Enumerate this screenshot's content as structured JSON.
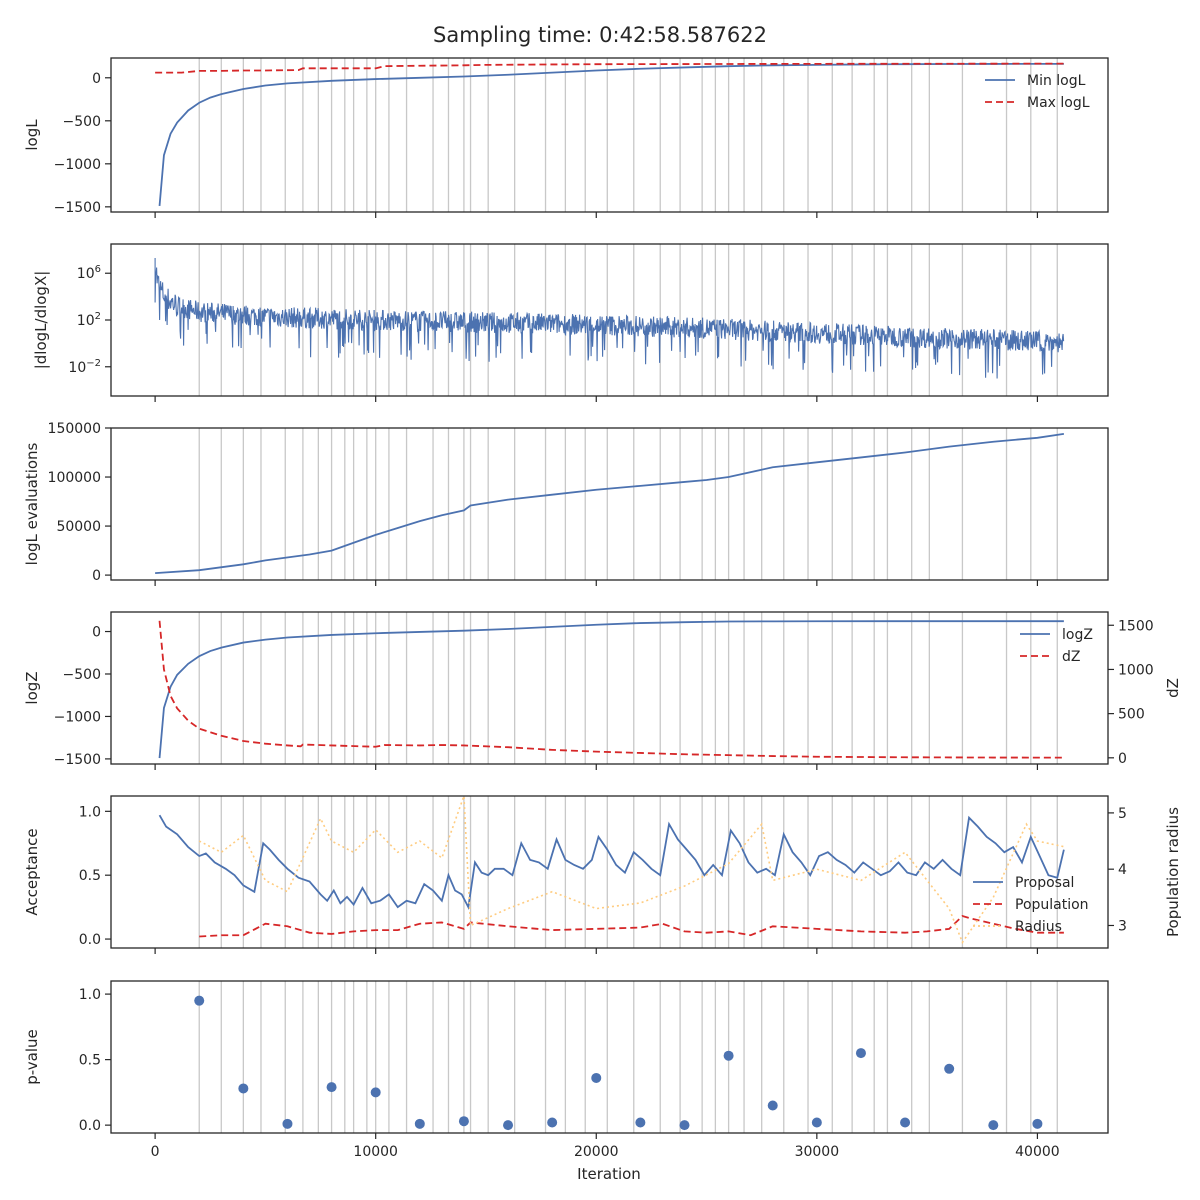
{
  "figure": {
    "title": "Sampling time: 0:42:58.587622",
    "xlabel": "Iteration"
  },
  "colors": {
    "blue": "#4c72b0",
    "red": "#d62728",
    "orange_dotted": "#ffcc80",
    "grid_line": "#c8c8c8",
    "frame": "#262626"
  },
  "chart_data": [
    {
      "id": "logL",
      "type": "line",
      "ylabel": "logL",
      "xlim": [
        -2000,
        43200
      ],
      "ylim": [
        -1560,
        230
      ],
      "x_ticks": [
        0,
        10000,
        20000,
        30000,
        40000
      ],
      "y_ticks": [
        0,
        -500,
        -1000,
        -1500
      ],
      "y_tick_labels": [
        "0",
        "−500",
        "−1000",
        "−1500"
      ],
      "legend": {
        "position": "top-right",
        "entries": [
          "Min logL",
          "Max logL"
        ]
      },
      "series": [
        {
          "name": "Min logL",
          "style": "solid",
          "color": "#4c72b0",
          "x": [
            200,
            400,
            700,
            1000,
            1500,
            2000,
            2500,
            3000,
            4000,
            5000,
            6000,
            8000,
            10000,
            12000,
            14000,
            16000,
            18000,
            20000,
            22000,
            24000,
            26000,
            28000,
            30000,
            32000,
            34000,
            36000,
            38000,
            40000,
            41200
          ],
          "y": [
            -1490,
            -900,
            -650,
            -520,
            -380,
            -290,
            -230,
            -190,
            -130,
            -90,
            -65,
            -35,
            -15,
            0,
            15,
            35,
            60,
            85,
            105,
            120,
            135,
            145,
            150,
            155,
            158,
            160,
            161,
            162,
            162
          ]
        },
        {
          "name": "Max logL",
          "style": "dashed",
          "color": "#d62728",
          "x": [
            0,
            1200,
            2000,
            3000,
            4000,
            5000,
            6500,
            6700,
            8000,
            10000,
            10400,
            12000,
            14000,
            15000,
            18000,
            20000,
            25000,
            30000,
            35000,
            41200
          ],
          "y": [
            60,
            60,
            80,
            80,
            85,
            85,
            90,
            110,
            110,
            110,
            135,
            140,
            145,
            150,
            155,
            158,
            160,
            162,
            163,
            165
          ]
        }
      ]
    },
    {
      "id": "dlogL",
      "type": "line",
      "ylabel": "|dlogL/dlogX|",
      "y_scale": "log",
      "xlim": [
        -2000,
        43200
      ],
      "ylim_log10": [
        -4.5,
        8.5
      ],
      "y_ticks_log10": [
        6,
        2,
        -2
      ],
      "y_tick_labels": [
        "10^6",
        "10^2",
        "10^−2"
      ],
      "series": [
        {
          "name": "",
          "style": "solid",
          "color": "#4c72b0",
          "x": [
            0,
            100,
            300,
            600,
            1000,
            2000,
            5000,
            10000,
            15000,
            20000,
            25000,
            30000,
            35000,
            40000,
            41200
          ],
          "y_log10_center": [
            7.3,
            5.2,
            4.3,
            3.6,
            3.1,
            2.6,
            2.2,
            1.9,
            1.7,
            1.5,
            1.2,
            0.8,
            0.4,
            0.1,
            0.0
          ]
        }
      ]
    },
    {
      "id": "evaluations",
      "type": "line",
      "ylabel": "logL evaluations",
      "xlim": [
        -2000,
        43200
      ],
      "ylim": [
        -5000,
        150000
      ],
      "y_ticks": [
        0,
        50000,
        100000,
        150000
      ],
      "y_tick_labels": [
        "0",
        "50000",
        "100000",
        "150000"
      ],
      "series": [
        {
          "name": "",
          "style": "solid",
          "color": "#4c72b0",
          "x": [
            0,
            2000,
            4000,
            5000,
            7000,
            8000,
            9000,
            10000,
            11000,
            12000,
            13000,
            14000,
            14300,
            16000,
            18000,
            20000,
            22000,
            24000,
            25000,
            26000,
            28000,
            30000,
            32000,
            34000,
            36000,
            38000,
            40000,
            41200
          ],
          "y": [
            2000,
            5000,
            11000,
            15000,
            21000,
            25000,
            33000,
            41000,
            48000,
            55000,
            61000,
            66000,
            71000,
            77000,
            82000,
            87000,
            91000,
            95000,
            97000,
            100000,
            110000,
            115000,
            120000,
            125000,
            131000,
            136000,
            140000,
            144000
          ]
        }
      ]
    },
    {
      "id": "logZ",
      "type": "line",
      "ylabel": "logZ",
      "ylabel_right": "dZ",
      "xlim": [
        -2000,
        43200
      ],
      "ylim": [
        -1560,
        230
      ],
      "ylim_right": [
        -70,
        1650
      ],
      "y_ticks": [
        0,
        -500,
        -1000,
        -1500
      ],
      "y_tick_labels": [
        "0",
        "−500",
        "−1000",
        "−1500"
      ],
      "y_ticks_right": [
        1500,
        1000,
        500,
        0
      ],
      "y_tick_labels_right": [
        "1500",
        "1000",
        "500",
        "0"
      ],
      "legend": {
        "position": "top-right",
        "entries": [
          "logZ",
          "dZ"
        ]
      },
      "series": [
        {
          "name": "logZ",
          "style": "solid",
          "color": "#4c72b0",
          "axis": "left",
          "x": [
            200,
            400,
            700,
            1000,
            1500,
            2000,
            2500,
            3000,
            4000,
            5000,
            6000,
            8000,
            10000,
            12000,
            14000,
            16000,
            18000,
            20000,
            22000,
            24000,
            26000,
            28000,
            30000,
            34000,
            38000,
            41200
          ],
          "y": [
            -1490,
            -900,
            -650,
            -510,
            -380,
            -290,
            -230,
            -190,
            -130,
            -95,
            -70,
            -40,
            -20,
            -5,
            10,
            30,
            55,
            80,
            100,
            110,
            118,
            120,
            121,
            122,
            122,
            122
          ]
        },
        {
          "name": "dZ",
          "style": "dashed",
          "color": "#d62728",
          "axis": "right",
          "x": [
            200,
            400,
            700,
            1000,
            1500,
            2000,
            3000,
            4000,
            5000,
            6000,
            6600,
            6700,
            8000,
            10000,
            10400,
            12000,
            13000,
            14000,
            16000,
            18000,
            20000,
            22000,
            24000,
            26000,
            28000,
            30000,
            34000,
            38000,
            41200
          ],
          "y": [
            1550,
            1000,
            700,
            560,
            420,
            330,
            250,
            190,
            160,
            140,
            130,
            150,
            140,
            125,
            145,
            140,
            145,
            140,
            120,
            90,
            70,
            55,
            40,
            30,
            20,
            12,
            6,
            3,
            2
          ]
        }
      ]
    },
    {
      "id": "acceptance",
      "type": "line",
      "ylabel": "Acceptance",
      "ylabel_right": "Population radius",
      "xlim": [
        -2000,
        43200
      ],
      "ylim": [
        -0.07,
        1.12
      ],
      "ylim_right": [
        2.6,
        5.3
      ],
      "y_ticks": [
        0.0,
        0.5,
        1.0
      ],
      "y_tick_labels": [
        "0.0",
        "0.5",
        "1.0"
      ],
      "y_ticks_right": [
        3,
        4,
        5
      ],
      "y_tick_labels_right": [
        "3",
        "4",
        "5"
      ],
      "legend": {
        "position": "lower-right",
        "entries": [
          "Proposal",
          "Population",
          "Radius"
        ]
      },
      "series": [
        {
          "name": "Proposal",
          "style": "solid",
          "color": "#4c72b0",
          "axis": "left",
          "x": [
            200,
            500,
            1000,
            1500,
            2000,
            2300,
            2700,
            3200,
            3600,
            4000,
            4500,
            4900,
            5200,
            5600,
            6000,
            6500,
            7000,
            7500,
            7800,
            8100,
            8400,
            8700,
            9000,
            9400,
            9800,
            10200,
            10600,
            11000,
            11400,
            11800,
            12200,
            12600,
            13000,
            13300,
            13600,
            13900,
            14200,
            14500,
            14800,
            15100,
            15400,
            15800,
            16200,
            16600,
            17000,
            17400,
            17800,
            18200,
            18600,
            19000,
            19400,
            19800,
            20100,
            20500,
            20900,
            21300,
            21700,
            22100,
            22500,
            22900,
            23300,
            23700,
            24100,
            24500,
            24900,
            25300,
            25700,
            26100,
            26500,
            26900,
            27300,
            27700,
            28100,
            28500,
            28900,
            29300,
            29700,
            30100,
            30500,
            30900,
            31300,
            31700,
            32100,
            32500,
            32900,
            33300,
            33700,
            34100,
            34500,
            34900,
            35300,
            35700,
            36100,
            36500,
            36900,
            37300,
            37700,
            38100,
            38500,
            38900,
            39300,
            39700,
            40100,
            40500,
            40900,
            41200
          ],
          "y": [
            0.97,
            0.88,
            0.82,
            0.72,
            0.65,
            0.67,
            0.6,
            0.55,
            0.5,
            0.42,
            0.37,
            0.75,
            0.7,
            0.62,
            0.55,
            0.48,
            0.45,
            0.35,
            0.3,
            0.38,
            0.28,
            0.33,
            0.27,
            0.4,
            0.28,
            0.3,
            0.35,
            0.25,
            0.3,
            0.28,
            0.43,
            0.38,
            0.3,
            0.5,
            0.38,
            0.35,
            0.25,
            0.6,
            0.52,
            0.5,
            0.55,
            0.55,
            0.5,
            0.75,
            0.62,
            0.6,
            0.55,
            0.78,
            0.62,
            0.58,
            0.55,
            0.62,
            0.8,
            0.7,
            0.58,
            0.52,
            0.68,
            0.62,
            0.55,
            0.5,
            0.9,
            0.78,
            0.7,
            0.62,
            0.5,
            0.58,
            0.5,
            0.85,
            0.75,
            0.6,
            0.52,
            0.55,
            0.5,
            0.82,
            0.68,
            0.6,
            0.5,
            0.65,
            0.68,
            0.62,
            0.58,
            0.52,
            0.6,
            0.55,
            0.5,
            0.53,
            0.6,
            0.52,
            0.5,
            0.6,
            0.55,
            0.62,
            0.55,
            0.5,
            0.95,
            0.88,
            0.8,
            0.75,
            0.68,
            0.72,
            0.6,
            0.8,
            0.65,
            0.5,
            0.48,
            0.7
          ]
        },
        {
          "name": "Population",
          "style": "dashed",
          "color": "#d62728",
          "axis": "left",
          "x": [
            2000,
            3000,
            4000,
            5000,
            6000,
            7000,
            8000,
            9000,
            10000,
            11000,
            12000,
            13000,
            14000,
            14300,
            16000,
            18000,
            20000,
            22000,
            23000,
            24000,
            25000,
            26000,
            27000,
            28000,
            30000,
            32000,
            34000,
            35000,
            36000,
            36600,
            37000,
            38000,
            39000,
            40000,
            41200
          ],
          "y": [
            0.02,
            0.03,
            0.03,
            0.12,
            0.1,
            0.05,
            0.04,
            0.06,
            0.07,
            0.07,
            0.12,
            0.13,
            0.08,
            0.13,
            0.1,
            0.07,
            0.08,
            0.09,
            0.12,
            0.06,
            0.05,
            0.06,
            0.03,
            0.1,
            0.08,
            0.06,
            0.05,
            0.06,
            0.08,
            0.18,
            0.16,
            0.12,
            0.08,
            0.05,
            0.05
          ]
        },
        {
          "name": "Radius",
          "style": "dotted",
          "color": "#ffcc80",
          "axis": "right",
          "x": [
            2000,
            3000,
            4000,
            5000,
            6000,
            7500,
            8000,
            9000,
            10000,
            11000,
            12000,
            13000,
            14000,
            14300,
            16000,
            18000,
            20000,
            22000,
            24000,
            26000,
            27500,
            28000,
            30000,
            32000,
            34000,
            36000,
            36600,
            38000,
            39500,
            40000,
            41200
          ],
          "y": [
            4.5,
            4.3,
            4.6,
            3.8,
            3.6,
            4.9,
            4.5,
            4.3,
            4.7,
            4.3,
            4.5,
            4.2,
            5.3,
            3.0,
            3.3,
            3.6,
            3.3,
            3.4,
            3.7,
            4.1,
            4.8,
            3.8,
            4.0,
            3.8,
            4.3,
            3.3,
            2.7,
            3.5,
            4.8,
            4.5,
            4.4
          ]
        }
      ]
    },
    {
      "id": "pvalue",
      "type": "scatter",
      "ylabel": "p-value",
      "xlim": [
        -2000,
        43200
      ],
      "ylim": [
        -0.06,
        1.1
      ],
      "y_ticks": [
        0.0,
        0.5,
        1.0
      ],
      "y_tick_labels": [
        "0.0",
        "0.5",
        "1.0"
      ],
      "x_ticks": [
        0,
        10000,
        20000,
        30000,
        40000
      ],
      "x_tick_labels": [
        "0",
        "10000",
        "20000",
        "30000",
        "40000"
      ],
      "series": [
        {
          "name": "",
          "color": "#4c72b0",
          "x": [
            2000,
            4000,
            6000,
            8000,
            10000,
            12000,
            14000,
            16000,
            18000,
            20000,
            22000,
            24000,
            26000,
            28000,
            30000,
            32000,
            34000,
            36000,
            38000,
            40000
          ],
          "y": [
            0.95,
            0.28,
            0.01,
            0.29,
            0.25,
            0.01,
            0.03,
            0.0,
            0.02,
            0.36,
            0.02,
            0.0,
            0.53,
            0.15,
            0.02,
            0.55,
            0.02,
            0.43,
            0.0,
            0.01
          ]
        }
      ]
    }
  ],
  "boundary_lines_x": [
    2000,
    3000,
    4000,
    4800,
    5900,
    6700,
    7400,
    8000,
    8600,
    9000,
    9600,
    10000,
    10600,
    11400,
    12600,
    13300,
    14000,
    14300,
    15100,
    16300,
    17700,
    18600,
    19500,
    20500,
    21700,
    22900,
    23800,
    24800,
    25400,
    26000,
    26700,
    27500,
    28500,
    29600,
    30700,
    31600,
    32600,
    33200,
    34300,
    35100,
    36600,
    38600,
    39700,
    40900
  ]
}
